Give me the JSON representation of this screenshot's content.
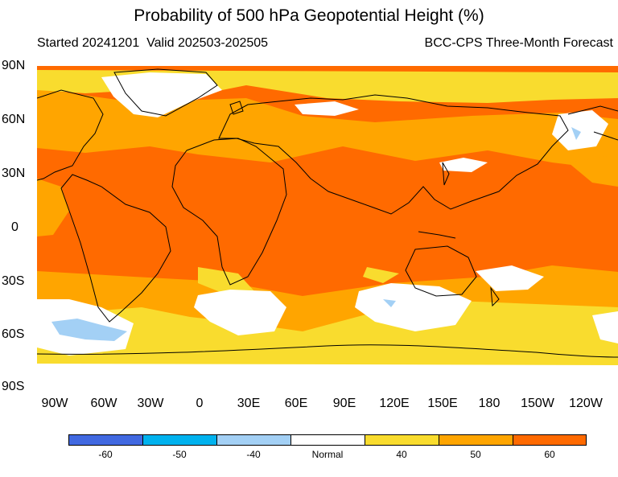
{
  "title": "Probability of 500 hPa Geopotential Height (%)",
  "subtitle_left": "Started 20241201  Valid 202503-202505",
  "subtitle_right": "BCC-CPS Three-Month Forecast",
  "lat_labels": [
    "90N",
    "60N",
    "30N",
    "0",
    "30S",
    "60S",
    "90S"
  ],
  "lon_labels": [
    "90W",
    "60W",
    "30W",
    "0",
    "30E",
    "60E",
    "90E",
    "120E",
    "150E",
    "180",
    "150W",
    "120W"
  ],
  "legend": {
    "labels": [
      "-60",
      "-50",
      "-40",
      "Normal",
      "40",
      "50",
      "60"
    ],
    "colors": [
      "#4169e1",
      "#00b2ee",
      "#a3d0f5",
      "#ffffff",
      "#f9dc2e",
      "#ffa500",
      "#ff6a00"
    ]
  },
  "colors": {
    "high": "#ff6a00",
    "mid": "#ffa500",
    "low": "#f9dc2e",
    "normal": "#ffffff",
    "below": "#a3d0f5",
    "coast": "#000000"
  }
}
